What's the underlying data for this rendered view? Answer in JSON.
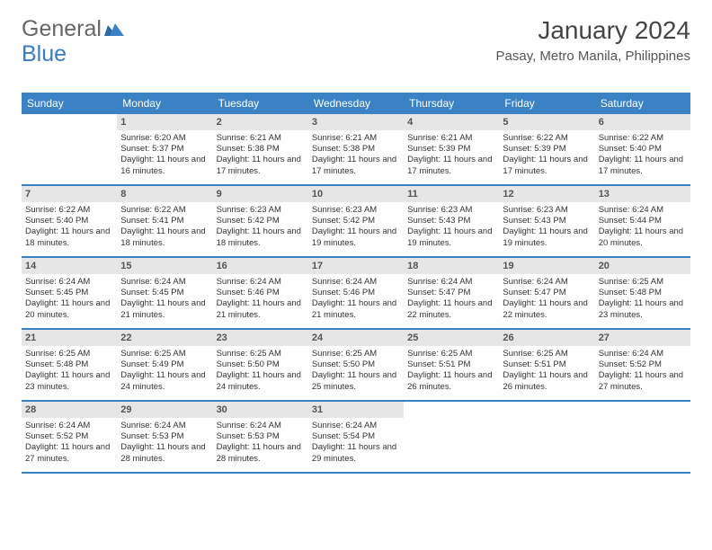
{
  "logo": {
    "part1": "General",
    "part2": "Blue"
  },
  "title": "January 2024",
  "subtitle": "Pasay, Metro Manila, Philippines",
  "dayNames": [
    "Sunday",
    "Monday",
    "Tuesday",
    "Wednesday",
    "Thursday",
    "Friday",
    "Saturday"
  ],
  "colors": {
    "header_bg": "#3b82c4",
    "daynum_bg": "#e6e6e6",
    "page_bg": "#ffffff",
    "logo_blue": "#3b7bbf",
    "text": "#333333"
  },
  "typography": {
    "body_pt": 9.5,
    "title_pt": 28,
    "subtitle_pt": 15,
    "dayname_pt": 12
  },
  "layout": {
    "start_weekday": 1,
    "rows": 5,
    "cols": 7
  },
  "days": [
    {
      "n": 1,
      "sunrise": "6:20 AM",
      "sunset": "5:37 PM",
      "daylight": "11 hours and 16 minutes."
    },
    {
      "n": 2,
      "sunrise": "6:21 AM",
      "sunset": "5:38 PM",
      "daylight": "11 hours and 17 minutes."
    },
    {
      "n": 3,
      "sunrise": "6:21 AM",
      "sunset": "5:38 PM",
      "daylight": "11 hours and 17 minutes."
    },
    {
      "n": 4,
      "sunrise": "6:21 AM",
      "sunset": "5:39 PM",
      "daylight": "11 hours and 17 minutes."
    },
    {
      "n": 5,
      "sunrise": "6:22 AM",
      "sunset": "5:39 PM",
      "daylight": "11 hours and 17 minutes."
    },
    {
      "n": 6,
      "sunrise": "6:22 AM",
      "sunset": "5:40 PM",
      "daylight": "11 hours and 17 minutes."
    },
    {
      "n": 7,
      "sunrise": "6:22 AM",
      "sunset": "5:40 PM",
      "daylight": "11 hours and 18 minutes."
    },
    {
      "n": 8,
      "sunrise": "6:22 AM",
      "sunset": "5:41 PM",
      "daylight": "11 hours and 18 minutes."
    },
    {
      "n": 9,
      "sunrise": "6:23 AM",
      "sunset": "5:42 PM",
      "daylight": "11 hours and 18 minutes."
    },
    {
      "n": 10,
      "sunrise": "6:23 AM",
      "sunset": "5:42 PM",
      "daylight": "11 hours and 19 minutes."
    },
    {
      "n": 11,
      "sunrise": "6:23 AM",
      "sunset": "5:43 PM",
      "daylight": "11 hours and 19 minutes."
    },
    {
      "n": 12,
      "sunrise": "6:23 AM",
      "sunset": "5:43 PM",
      "daylight": "11 hours and 19 minutes."
    },
    {
      "n": 13,
      "sunrise": "6:24 AM",
      "sunset": "5:44 PM",
      "daylight": "11 hours and 20 minutes."
    },
    {
      "n": 14,
      "sunrise": "6:24 AM",
      "sunset": "5:45 PM",
      "daylight": "11 hours and 20 minutes."
    },
    {
      "n": 15,
      "sunrise": "6:24 AM",
      "sunset": "5:45 PM",
      "daylight": "11 hours and 21 minutes."
    },
    {
      "n": 16,
      "sunrise": "6:24 AM",
      "sunset": "5:46 PM",
      "daylight": "11 hours and 21 minutes."
    },
    {
      "n": 17,
      "sunrise": "6:24 AM",
      "sunset": "5:46 PM",
      "daylight": "11 hours and 21 minutes."
    },
    {
      "n": 18,
      "sunrise": "6:24 AM",
      "sunset": "5:47 PM",
      "daylight": "11 hours and 22 minutes."
    },
    {
      "n": 19,
      "sunrise": "6:24 AM",
      "sunset": "5:47 PM",
      "daylight": "11 hours and 22 minutes."
    },
    {
      "n": 20,
      "sunrise": "6:25 AM",
      "sunset": "5:48 PM",
      "daylight": "11 hours and 23 minutes."
    },
    {
      "n": 21,
      "sunrise": "6:25 AM",
      "sunset": "5:48 PM",
      "daylight": "11 hours and 23 minutes."
    },
    {
      "n": 22,
      "sunrise": "6:25 AM",
      "sunset": "5:49 PM",
      "daylight": "11 hours and 24 minutes."
    },
    {
      "n": 23,
      "sunrise": "6:25 AM",
      "sunset": "5:50 PM",
      "daylight": "11 hours and 24 minutes."
    },
    {
      "n": 24,
      "sunrise": "6:25 AM",
      "sunset": "5:50 PM",
      "daylight": "11 hours and 25 minutes."
    },
    {
      "n": 25,
      "sunrise": "6:25 AM",
      "sunset": "5:51 PM",
      "daylight": "11 hours and 26 minutes."
    },
    {
      "n": 26,
      "sunrise": "6:25 AM",
      "sunset": "5:51 PM",
      "daylight": "11 hours and 26 minutes."
    },
    {
      "n": 27,
      "sunrise": "6:24 AM",
      "sunset": "5:52 PM",
      "daylight": "11 hours and 27 minutes."
    },
    {
      "n": 28,
      "sunrise": "6:24 AM",
      "sunset": "5:52 PM",
      "daylight": "11 hours and 27 minutes."
    },
    {
      "n": 29,
      "sunrise": "6:24 AM",
      "sunset": "5:53 PM",
      "daylight": "11 hours and 28 minutes."
    },
    {
      "n": 30,
      "sunrise": "6:24 AM",
      "sunset": "5:53 PM",
      "daylight": "11 hours and 28 minutes."
    },
    {
      "n": 31,
      "sunrise": "6:24 AM",
      "sunset": "5:54 PM",
      "daylight": "11 hours and 29 minutes."
    }
  ],
  "labels": {
    "sunrise": "Sunrise:",
    "sunset": "Sunset:",
    "daylight": "Daylight:"
  }
}
